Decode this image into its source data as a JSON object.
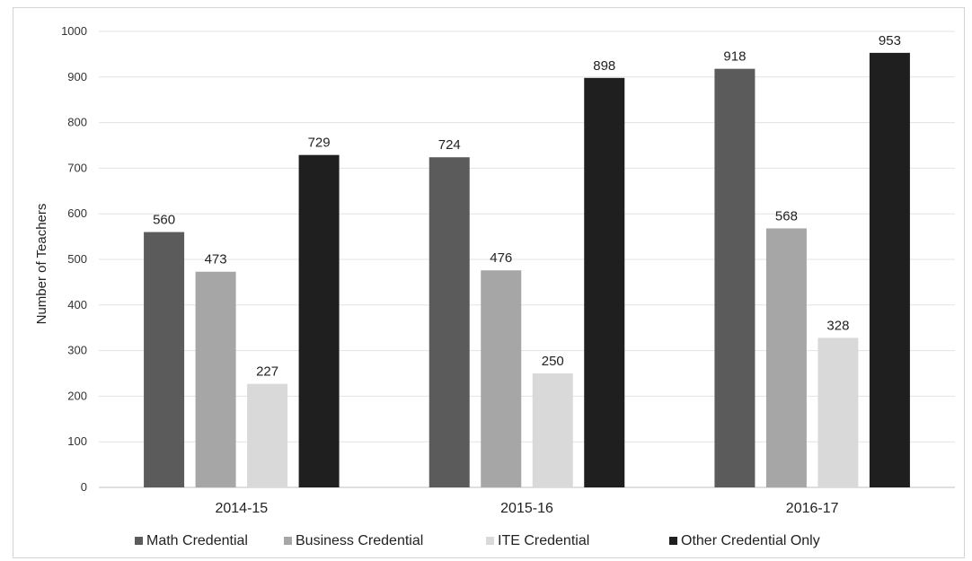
{
  "chart_data": {
    "type": "bar",
    "title": "",
    "xlabel": "",
    "ylabel": "Number of Teachers",
    "ylim": [
      0,
      1000
    ],
    "yticks": [
      0,
      100,
      200,
      300,
      400,
      500,
      600,
      700,
      800,
      900,
      1000
    ],
    "grid": true,
    "legend_position": "bottom",
    "categories": [
      "2014-15",
      "2015-16",
      "2016-17"
    ],
    "series": [
      {
        "name": "Math Credential",
        "color": "#5b5b5b",
        "values": [
          560,
          724,
          918
        ]
      },
      {
        "name": "Business Credential",
        "color": "#a6a6a6",
        "values": [
          473,
          476,
          568
        ]
      },
      {
        "name": "ITE Credential",
        "color": "#d9d9d9",
        "values": [
          227,
          250,
          328
        ]
      },
      {
        "name": "Other Credential Only",
        "color": "#1f1f1f",
        "values": [
          729,
          898,
          953
        ]
      }
    ]
  }
}
